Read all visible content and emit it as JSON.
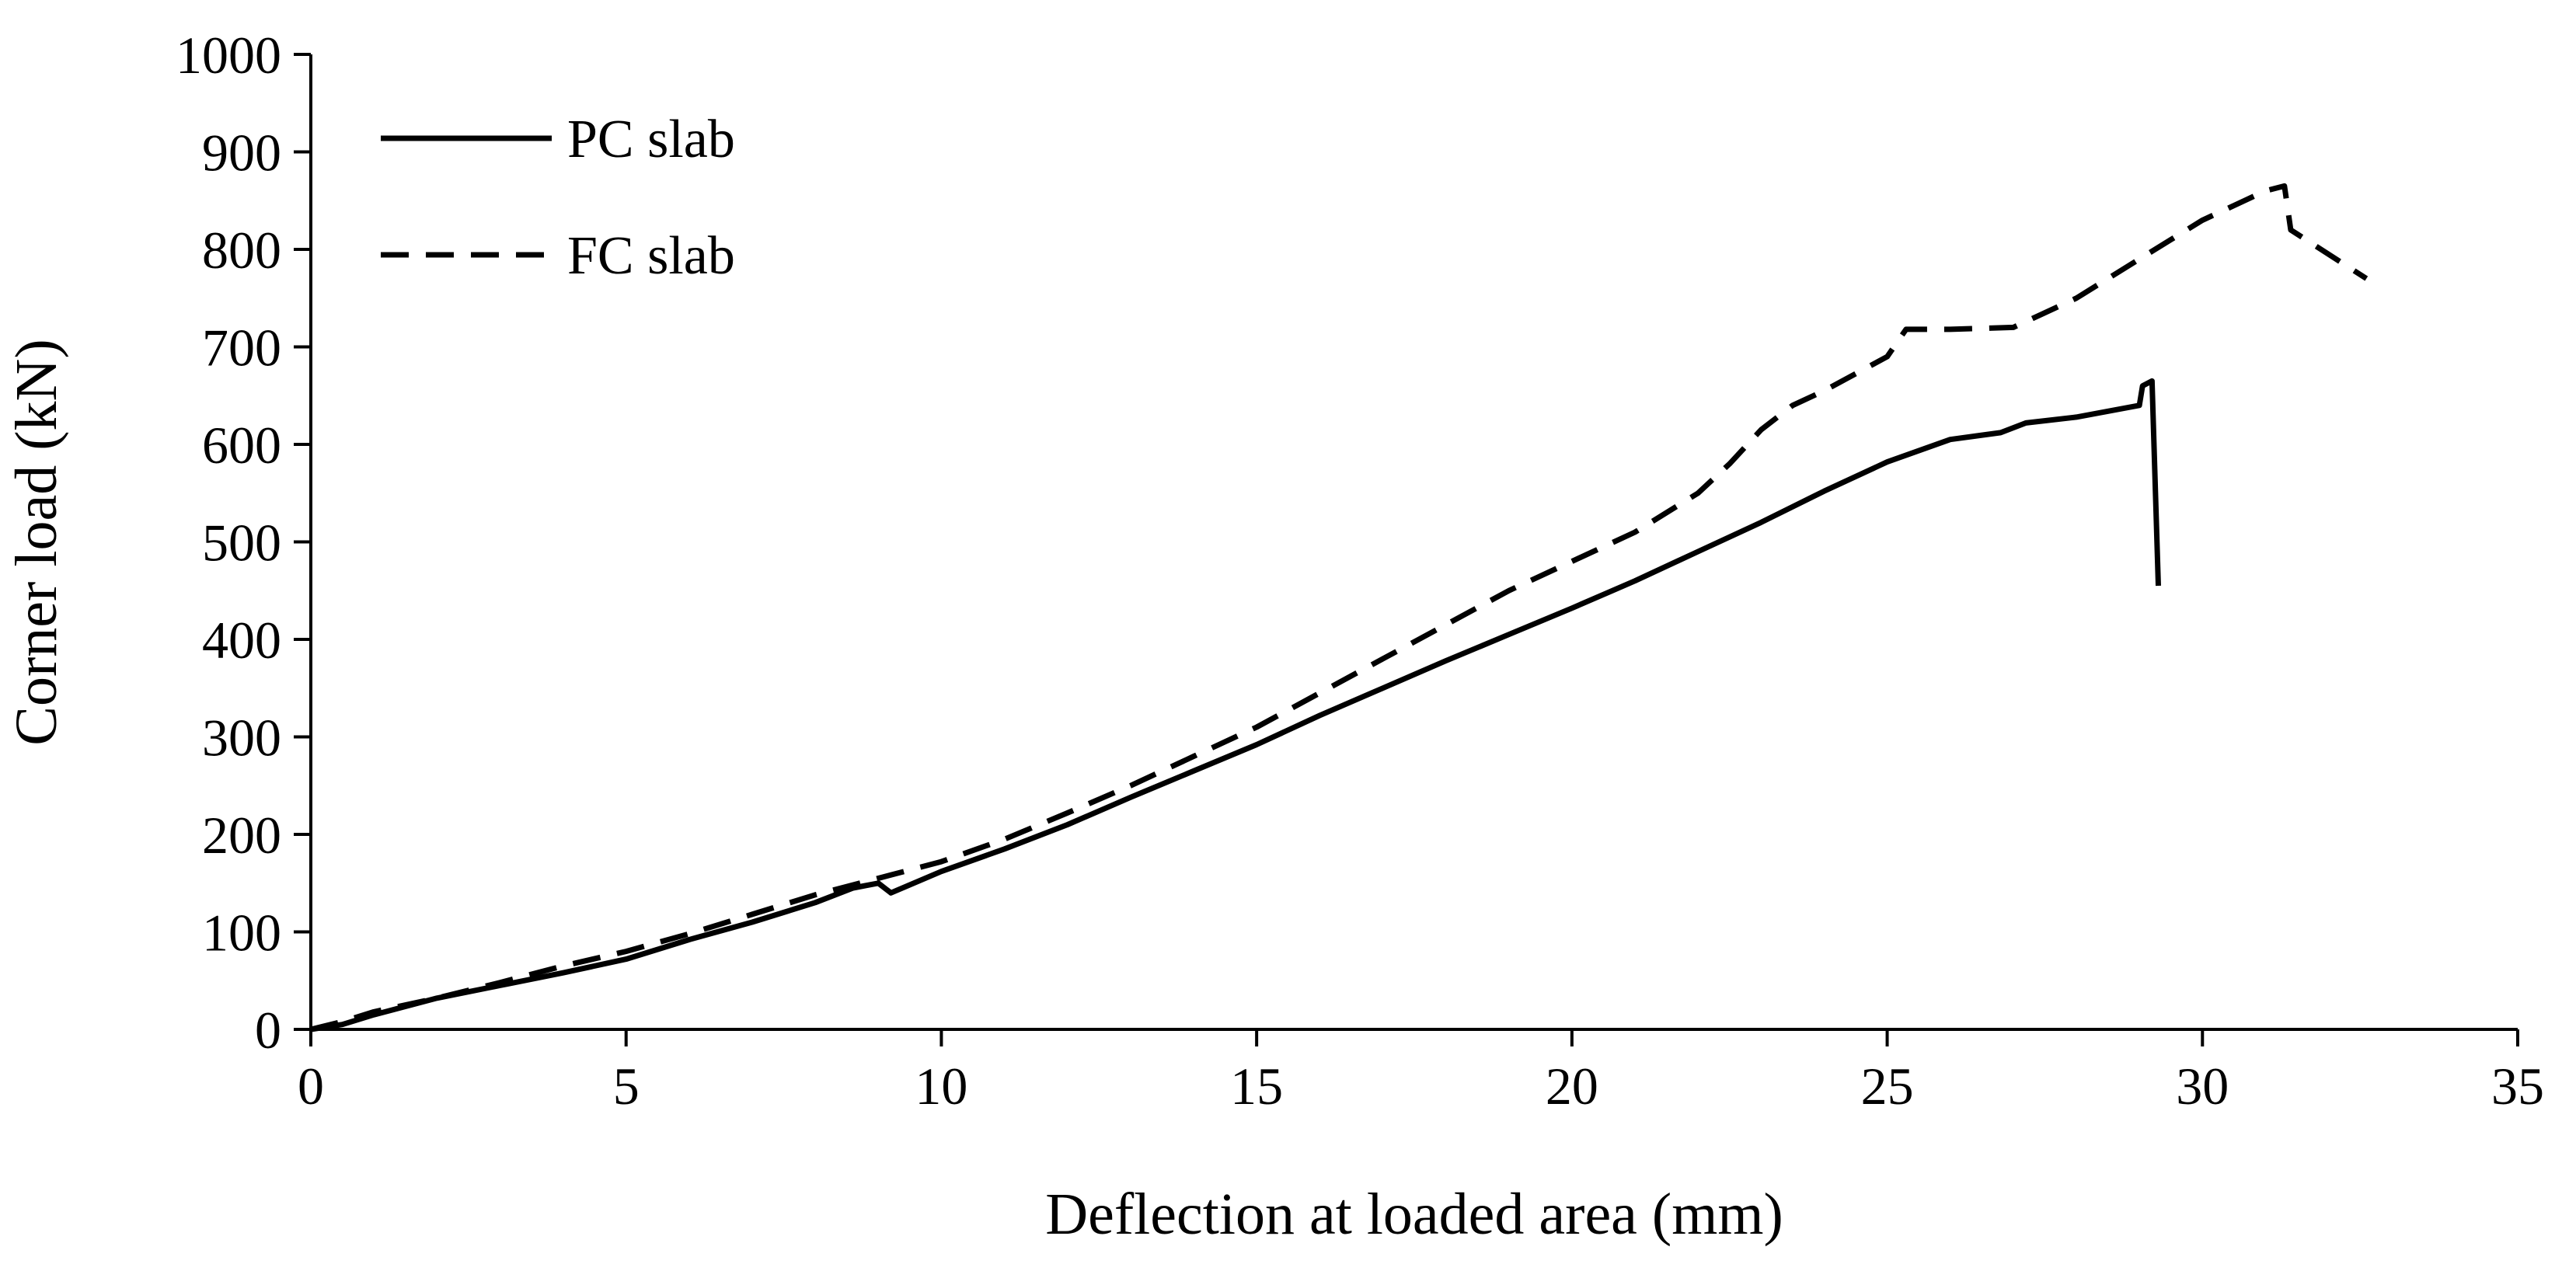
{
  "chart_data": {
    "type": "line",
    "title": "",
    "xlabel": "Deflection at loaded area (mm)",
    "ylabel": "Corner load (kN)",
    "xlim": [
      0,
      35
    ],
    "ylim": [
      0,
      1000
    ],
    "xticks": [
      0,
      5,
      10,
      15,
      20,
      25,
      30,
      35
    ],
    "yticks": [
      0,
      100,
      200,
      300,
      400,
      500,
      600,
      700,
      800,
      900,
      1000
    ],
    "grid": false,
    "legend_position": "top-left",
    "series": [
      {
        "name": "PC slab",
        "line_style": "solid",
        "color": "#000000",
        "x": [
          0,
          0.5,
          1,
          2,
          3,
          4,
          5,
          6,
          7,
          8,
          8.6,
          9,
          9.2,
          10,
          11,
          12,
          13,
          14,
          15,
          16,
          17,
          18,
          19,
          20,
          21,
          22,
          23,
          24,
          25,
          26,
          26.8,
          27.2,
          28,
          29,
          29.05,
          29.2,
          29.3
        ],
        "y": [
          0,
          5,
          15,
          32,
          45,
          58,
          72,
          92,
          110,
          130,
          145,
          150,
          140,
          162,
          185,
          210,
          238,
          265,
          292,
          322,
          350,
          378,
          405,
          432,
          460,
          490,
          520,
          552,
          582,
          605,
          612,
          622,
          628,
          640,
          660,
          665,
          455
        ]
      },
      {
        "name": "FC slab",
        "line_style": "dashed",
        "color": "#000000",
        "x": [
          0,
          0.5,
          1,
          2,
          3,
          4,
          5,
          6,
          7,
          8,
          9,
          10,
          11,
          12,
          13,
          14,
          15,
          16,
          17,
          18,
          19,
          20,
          21,
          22,
          22.5,
          23,
          23.5,
          24,
          25,
          25.3,
          26,
          27,
          28,
          29,
          30,
          31,
          31.3,
          31.4,
          32.6
        ],
        "y": [
          0,
          8,
          18,
          32,
          48,
          65,
          80,
          98,
          118,
          138,
          155,
          172,
          195,
          222,
          250,
          280,
          310,
          345,
          380,
          415,
          450,
          480,
          510,
          550,
          580,
          615,
          640,
          655,
          690,
          718,
          718,
          720,
          750,
          790,
          830,
          860,
          865,
          820,
          770
        ]
      }
    ]
  }
}
